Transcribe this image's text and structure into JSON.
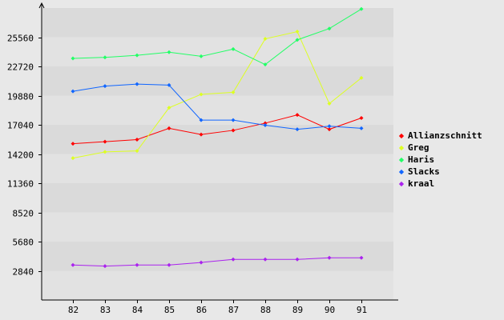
{
  "chart_data": {
    "type": "line",
    "categories": [
      "82",
      "83",
      "84",
      "85",
      "86",
      "87",
      "88",
      "89",
      "90",
      "91"
    ],
    "ylim": [
      0,
      28400
    ],
    "yticks": [
      2840,
      5680,
      8520,
      11360,
      14200,
      17040,
      19880,
      22720,
      25560
    ],
    "grid": "horizontal bands",
    "legend_position": "right",
    "series": [
      {
        "name": "Allianzschnitt",
        "color": "#ff0000",
        "values": [
          15200,
          15400,
          15600,
          16700,
          16100,
          16500,
          17200,
          18000,
          16600,
          17700
        ]
      },
      {
        "name": "Greg",
        "color": "#ddff22",
        "values": [
          13800,
          14400,
          14500,
          18700,
          20000,
          20200,
          25400,
          26100,
          19100,
          21600
        ]
      },
      {
        "name": "Haris",
        "color": "#22ff66",
        "values": [
          23500,
          23600,
          23800,
          24100,
          23700,
          24400,
          22900,
          25300,
          26400,
          28300
        ]
      },
      {
        "name": "Slacks",
        "color": "#1166ff",
        "values": [
          20300,
          20800,
          21000,
          20900,
          17500,
          17500,
          17000,
          16600,
          16900,
          16700
        ]
      },
      {
        "name": "kraal",
        "color": "#aa22ee",
        "values": [
          3400,
          3300,
          3400,
          3400,
          3650,
          3950,
          3950,
          3950,
          4100,
          4100
        ]
      }
    ]
  }
}
